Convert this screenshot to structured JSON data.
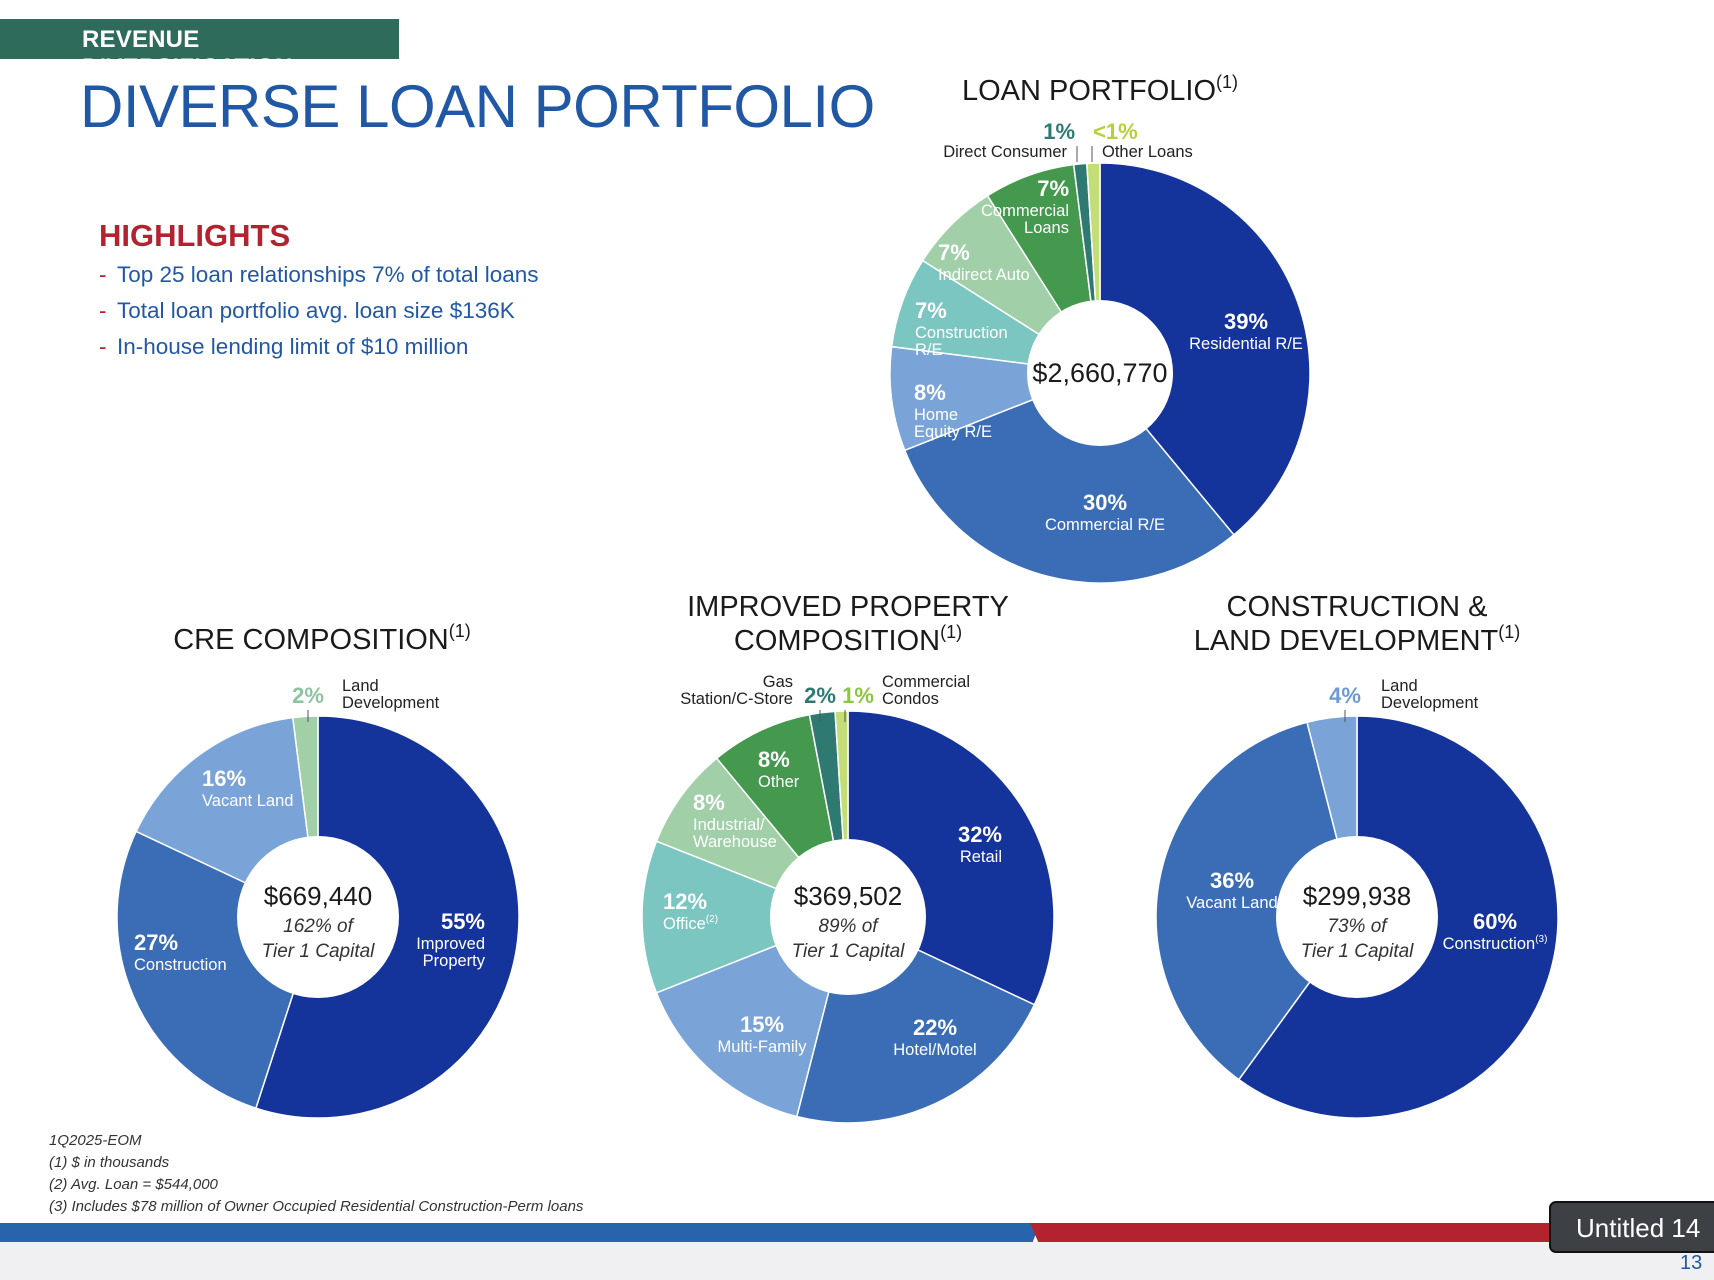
{
  "header": {
    "tag": "REVENUE DIVERSIFICATION",
    "title": "DIVERSE LOAN PORTFOLIO"
  },
  "highlights": {
    "title": "HIGHLIGHTS",
    "items": [
      "Top 25 loan relationships 7% of total loans",
      "Total loan portfolio avg. loan size $136K",
      "In-house lending limit of $10 million"
    ]
  },
  "footnotes": [
    "1Q2025-EOM",
    "(1) $ in thousands",
    "(2) Avg. Loan = $544,000",
    "(3) Includes $78 million of Owner Occupied Residential Construction-Perm loans"
  ],
  "badge": "Untitled 14",
  "page_number": "13",
  "colors": {
    "navy": "#14339b",
    "mid_blue": "#3a6db5",
    "light_blue": "#7aa3d8",
    "teal": "#7cc6c2",
    "light_green": "#a0cfa8",
    "green": "#45994f",
    "dark_teal": "#2e7a72",
    "lime": "#c3de77"
  },
  "chart_data": [
    {
      "type": "pie",
      "title": "LOAN PORTFOLIO",
      "title_sup": "(1)",
      "center": [
        "$2,660,770"
      ],
      "slices": [
        {
          "label": "Residential R/E",
          "pct_label": "39%",
          "value": 39,
          "color": "#14339b"
        },
        {
          "label": "Commercial R/E",
          "pct_label": "30%",
          "value": 30,
          "color": "#3a6db5"
        },
        {
          "label": "Home Equity R/E",
          "pct_label": "8%",
          "value": 8,
          "color": "#7aa3d8"
        },
        {
          "label": "Construction R/E",
          "pct_label": "7%",
          "value": 7,
          "color": "#7cc6c2"
        },
        {
          "label": "Indirect Auto",
          "pct_label": "7%",
          "value": 7,
          "color": "#a0cfa8"
        },
        {
          "label": "Commercial Loans",
          "pct_label": "7%",
          "value": 7,
          "color": "#45994f"
        },
        {
          "label": "Direct Consumer",
          "pct_label": "1%",
          "value": 1,
          "color": "#2e7a72"
        },
        {
          "label": "Other Loans",
          "pct_label": "<1%",
          "value": 1,
          "color": "#c3de77"
        }
      ]
    },
    {
      "type": "pie",
      "title": "CRE COMPOSITION",
      "title_sup": "(1)",
      "center": [
        "$669,440",
        "162% of",
        "Tier 1 Capital"
      ],
      "slices": [
        {
          "label": "Improved Property",
          "pct_label": "55%",
          "value": 55,
          "color": "#14339b"
        },
        {
          "label": "Construction",
          "pct_label": "27%",
          "value": 27,
          "color": "#3a6db5"
        },
        {
          "label": "Vacant Land",
          "pct_label": "16%",
          "value": 16,
          "color": "#7aa3d8"
        },
        {
          "label": "Land Development",
          "pct_label": "2%",
          "value": 2,
          "color": "#a0cfa8"
        }
      ]
    },
    {
      "type": "pie",
      "title": "IMPROVED PROPERTY COMPOSITION",
      "title_sup": "(1)",
      "center": [
        "$369,502",
        "89% of",
        "Tier 1 Capital"
      ],
      "slices": [
        {
          "label": "Retail",
          "pct_label": "32%",
          "value": 32,
          "color": "#14339b"
        },
        {
          "label": "Hotel/Motel",
          "pct_label": "22%",
          "value": 22,
          "color": "#3a6db5"
        },
        {
          "label": "Multi-Family",
          "pct_label": "15%",
          "value": 15,
          "color": "#7aa3d8"
        },
        {
          "label": "Office",
          "label_sup": "(2)",
          "pct_label": "12%",
          "value": 12,
          "color": "#7cc6c2"
        },
        {
          "label": "Industrial/ Warehouse",
          "pct_label": "8%",
          "value": 8,
          "color": "#a0cfa8"
        },
        {
          "label": "Other",
          "pct_label": "8%",
          "value": 8,
          "color": "#45994f"
        },
        {
          "label": "Gas Station/C-Store",
          "pct_label": "2%",
          "value": 2,
          "color": "#2e7a72"
        },
        {
          "label": "Commercial Condos",
          "pct_label": "1%",
          "value": 1,
          "color": "#c3de77"
        }
      ]
    },
    {
      "type": "pie",
      "title": "CONSTRUCTION & LAND DEVELOPMENT",
      "title_sup": "(1)",
      "center": [
        "$299,938",
        "73% of",
        "Tier 1 Capital"
      ],
      "slices": [
        {
          "label": "Construction",
          "label_sup": "(3)",
          "pct_label": "60%",
          "value": 60,
          "color": "#14339b"
        },
        {
          "label": "Vacant Land",
          "pct_label": "36%",
          "value": 36,
          "color": "#3a6db5"
        },
        {
          "label": "Land Development",
          "pct_label": "4%",
          "value": 4,
          "color": "#7aa3d8"
        }
      ]
    }
  ]
}
